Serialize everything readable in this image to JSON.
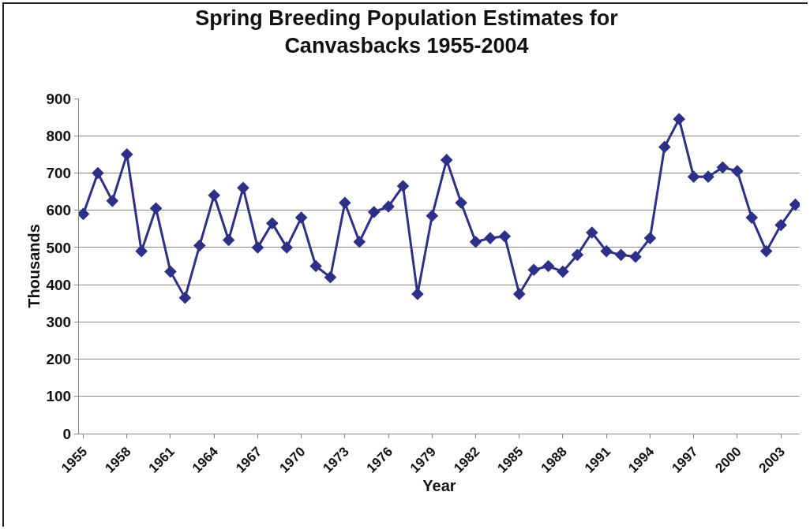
{
  "chart_data": {
    "type": "line",
    "title": "Spring Breeding Population Estimates for\nCanvasbacks 1955-2004",
    "xlabel": "Year",
    "ylabel": "Thousands",
    "categories": [
      "1955",
      null,
      null,
      "1958",
      null,
      null,
      "1961",
      null,
      null,
      "1964",
      null,
      null,
      "1967",
      null,
      null,
      "1970",
      null,
      null,
      "1973",
      null,
      null,
      "1976",
      null,
      null,
      "1979",
      null,
      null,
      "1982",
      null,
      null,
      "1985",
      null,
      null,
      "1988",
      null,
      null,
      "1991",
      null,
      null,
      "1994",
      null,
      null,
      "1997",
      null,
      null,
      "2000",
      null,
      null,
      "2003",
      null
    ],
    "series": [
      {
        "color": "#2e3087",
        "values": [
          590,
          700,
          625,
          750,
          490,
          605,
          435,
          365,
          505,
          640,
          520,
          660,
          500,
          565,
          500,
          580,
          450,
          420,
          620,
          515,
          595,
          610,
          665,
          375,
          585,
          735,
          620,
          515,
          525,
          530,
          375,
          440,
          450,
          435,
          480,
          540,
          490,
          480,
          475,
          525,
          770,
          845,
          690,
          690,
          715,
          705,
          580,
          490,
          560,
          615
        ]
      }
    ],
    "ylim": [
      0,
      900
    ],
    "yticks": [
      0,
      100,
      200,
      300,
      400,
      500,
      600,
      700,
      800,
      900
    ],
    "grid": "y",
    "marker": "diamond",
    "line_style": "solid"
  }
}
